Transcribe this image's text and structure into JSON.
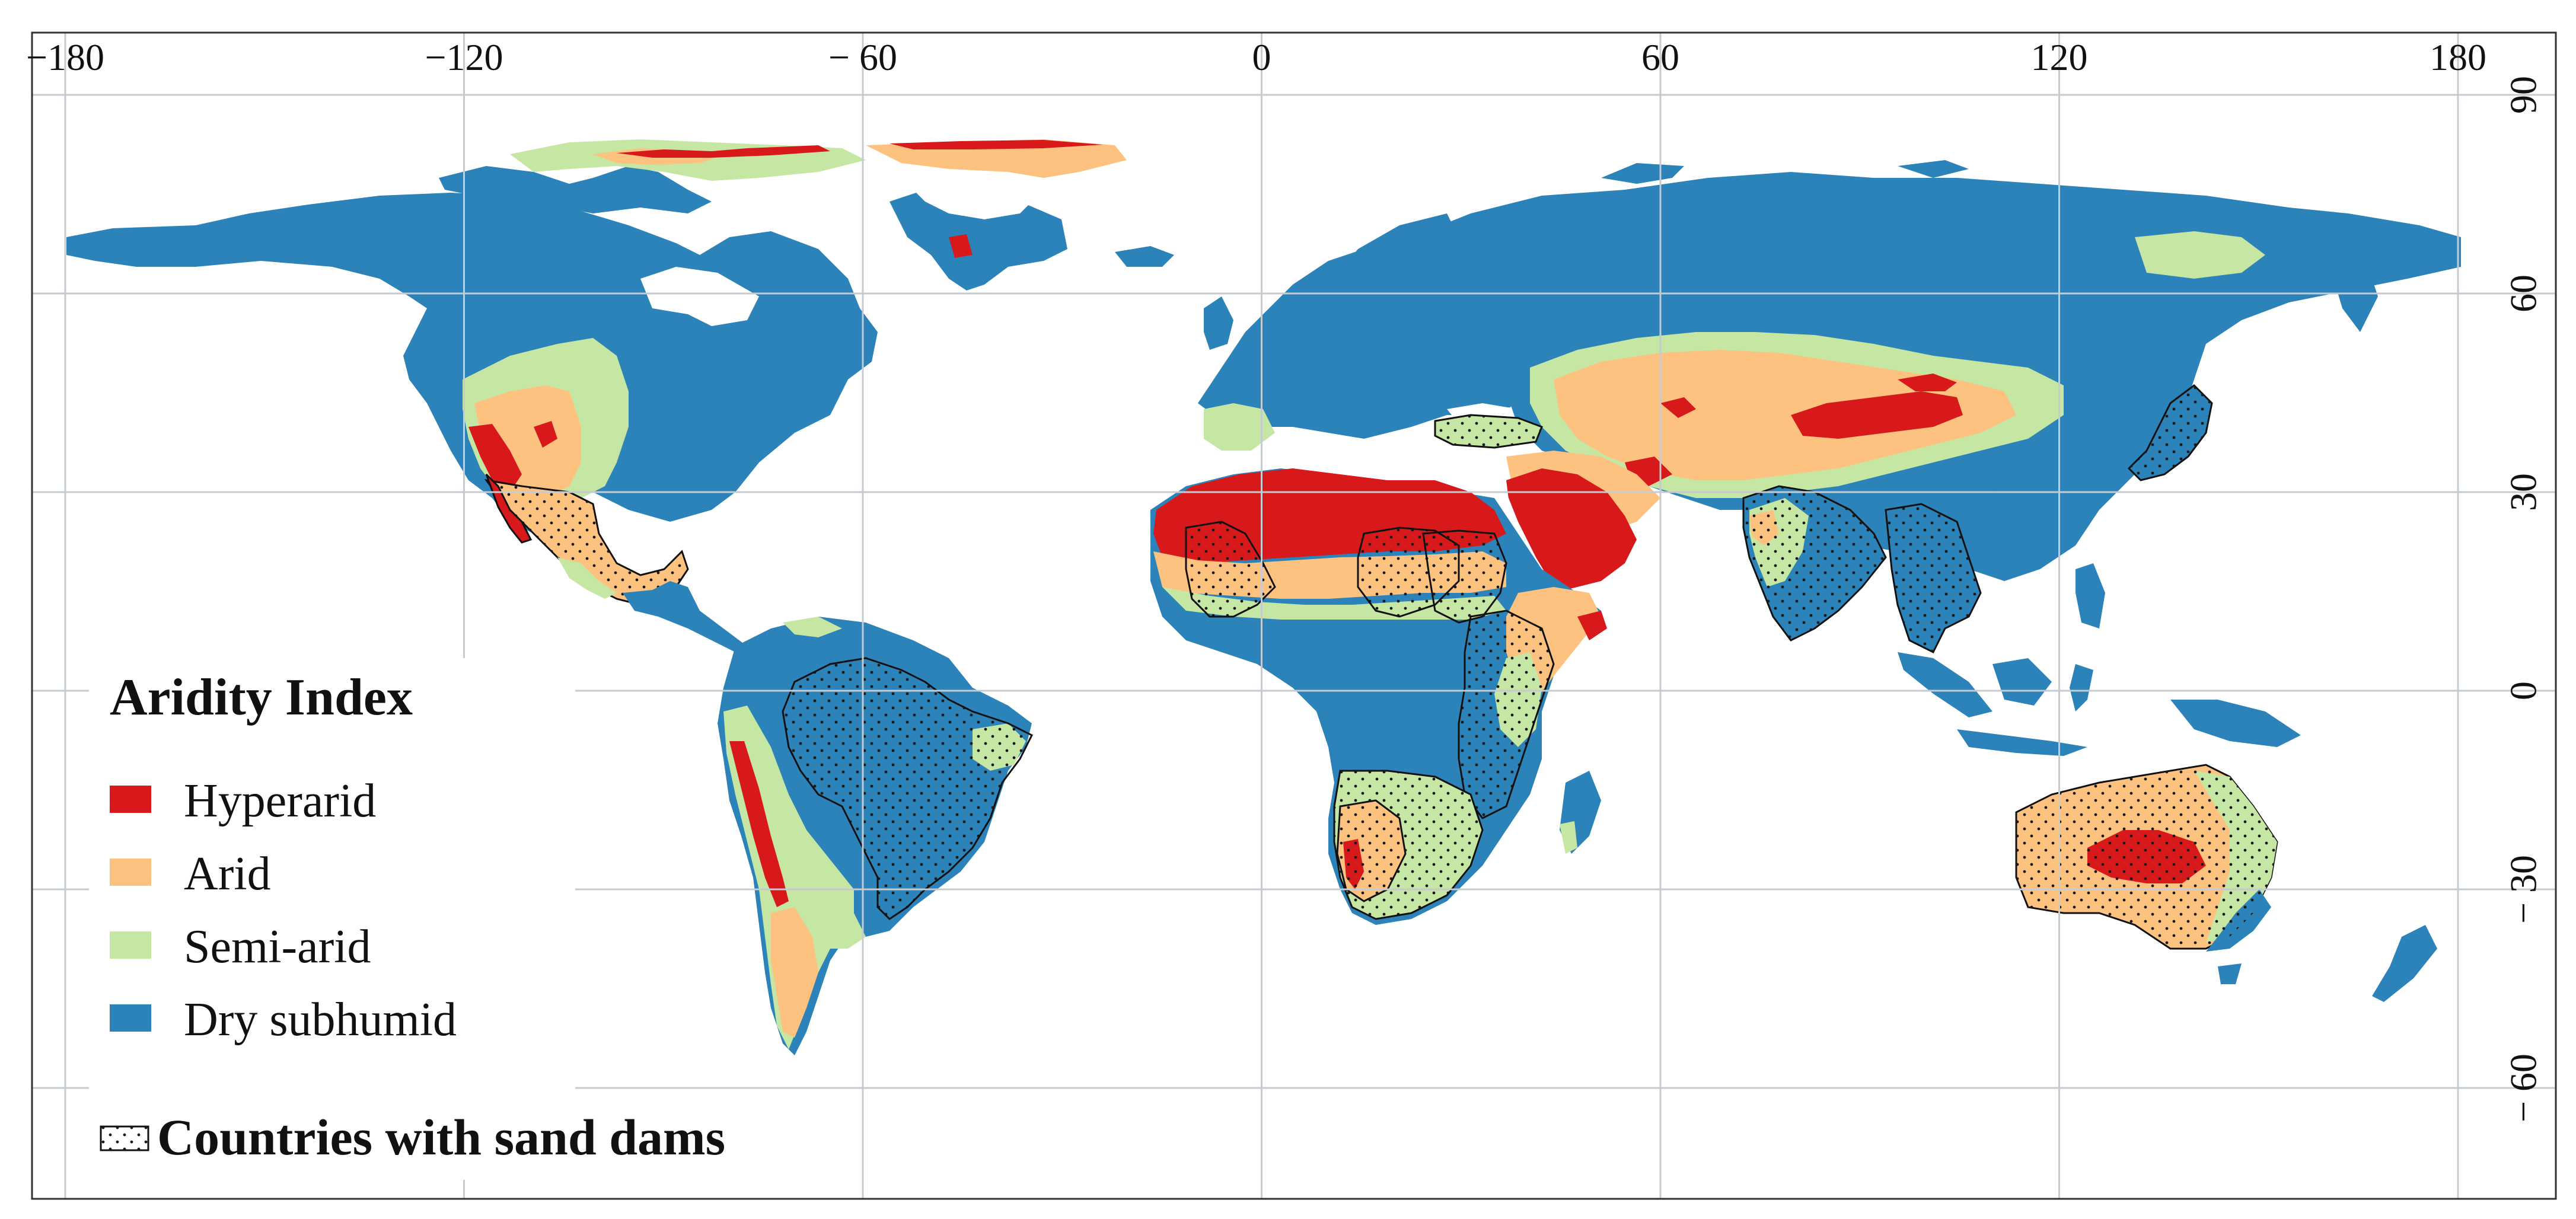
{
  "map": {
    "x_ticks": [
      {
        "lon": -180,
        "label": "−180"
      },
      {
        "lon": -120,
        "label": "−120"
      },
      {
        "lon": -60,
        "label": "− 60"
      },
      {
        "lon": 0,
        "label": "0"
      },
      {
        "lon": 60,
        "label": "60"
      },
      {
        "lon": 120,
        "label": "120"
      },
      {
        "lon": 180,
        "label": "180"
      }
    ],
    "y_ticks": [
      {
        "lat": 90,
        "label": "90"
      },
      {
        "lat": 60,
        "label": "60"
      },
      {
        "lat": 30,
        "label": "30"
      },
      {
        "lat": 0,
        "label": "0"
      },
      {
        "lat": -30,
        "label": "− 30"
      },
      {
        "lat": -60,
        "label": "− 60"
      }
    ],
    "extent": {
      "lon": [
        -180,
        180
      ],
      "lat": [
        -68,
        92
      ]
    },
    "grid": true
  },
  "legend": {
    "title": "Aridity Index",
    "items": [
      {
        "label": "Hyperarid",
        "color": "#d7191c"
      },
      {
        "label": "Arid",
        "color": "#fdc27f"
      },
      {
        "label": "Semi-arid",
        "color": "#c6e6a3"
      },
      {
        "label": "Dry subhumid",
        "color": "#2b83ba"
      }
    ],
    "pattern_label": "Countries with sand dams"
  },
  "colors": {
    "humid_land": "#ffffff",
    "ocean": "#ffffff",
    "gridline": "#c6cbd1",
    "border": "#111111",
    "stipple": "#1a1a1a"
  }
}
